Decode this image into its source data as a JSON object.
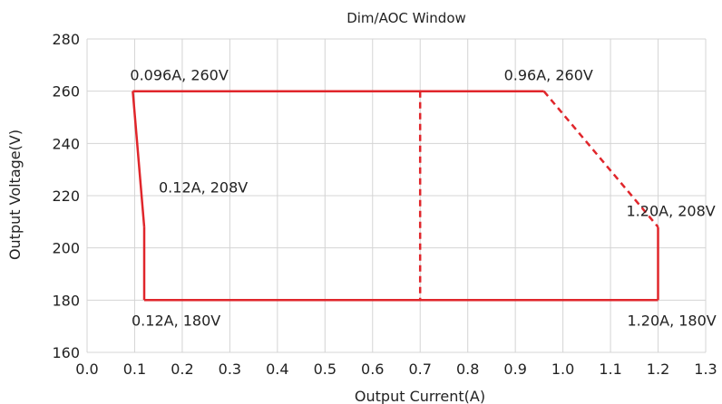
{
  "chart_data": {
    "type": "line",
    "title": "Dim/AOC Window",
    "xlabel": "Output Current(A)",
    "ylabel": "Output Voltage(V)",
    "xlim": [
      0.0,
      1.3
    ],
    "ylim": [
      160,
      280
    ],
    "xticks": [
      "0.0",
      "0.1",
      "0.2",
      "0.3",
      "0.4",
      "0.5",
      "0.6",
      "0.7",
      "0.8",
      "0.9",
      "1.0",
      "1.1",
      "1.2",
      "1.3"
    ],
    "yticks": [
      "160",
      "180",
      "200",
      "220",
      "240",
      "260",
      "280"
    ],
    "grid": true,
    "line_color": "#e0262b",
    "series": [
      {
        "style": "solid",
        "points": [
          [
            0.096,
            260
          ],
          [
            0.96,
            260
          ]
        ]
      },
      {
        "style": "dashed",
        "points": [
          [
            0.96,
            260
          ],
          [
            1.2,
            208
          ]
        ]
      },
      {
        "style": "solid",
        "points": [
          [
            1.2,
            208
          ],
          [
            1.2,
            180
          ]
        ]
      },
      {
        "style": "solid",
        "points": [
          [
            1.2,
            180
          ],
          [
            0.12,
            180
          ]
        ]
      },
      {
        "style": "solid",
        "points": [
          [
            0.12,
            180
          ],
          [
            0.12,
            208
          ]
        ]
      },
      {
        "style": "solid",
        "points": [
          [
            0.12,
            208
          ],
          [
            0.096,
            260
          ]
        ]
      },
      {
        "style": "dashed",
        "points": [
          [
            0.7,
            260
          ],
          [
            0.7,
            180
          ]
        ]
      }
    ],
    "annotations": [
      {
        "text": "0.096A, 260V",
        "x": 0.096,
        "y": 260,
        "anchor": "above-right"
      },
      {
        "text": "0.96A, 260V",
        "x": 0.96,
        "y": 260,
        "anchor": "above-left"
      },
      {
        "text": "0.12A, 208V",
        "x": 0.12,
        "y": 208,
        "anchor": "right-above"
      },
      {
        "text": "1.20A, 208V",
        "x": 1.2,
        "y": 208,
        "anchor": "above-left"
      },
      {
        "text": "0.12A, 180V",
        "x": 0.12,
        "y": 180,
        "anchor": "below"
      },
      {
        "text": "1.20A, 180V",
        "x": 1.2,
        "y": 180,
        "anchor": "below"
      }
    ]
  }
}
